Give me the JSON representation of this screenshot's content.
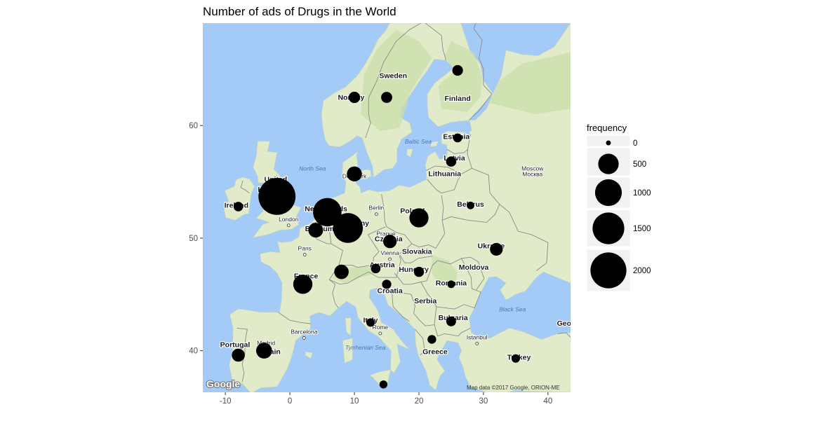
{
  "chart_data": {
    "type": "scatter",
    "title": "Number of ads of Drugs in the World",
    "xlabel": "",
    "ylabel": "",
    "xlim": [
      -13.5,
      43.5
    ],
    "ylim": [
      36.3,
      69.1
    ],
    "x_ticks": [
      -10,
      0,
      10,
      20,
      30,
      40
    ],
    "y_ticks": [
      40,
      50,
      60
    ],
    "x_tick_labels": [
      "-10",
      "0",
      "10",
      "20",
      "30",
      "40"
    ],
    "y_tick_labels": [
      "40",
      "50",
      "60"
    ],
    "grid": false,
    "background": "map",
    "legend": {
      "title": "frequency",
      "placement": "right",
      "entries": [
        {
          "label": "0",
          "value": 0
        },
        {
          "label": "500",
          "value": 500
        },
        {
          "label": "1000",
          "value": 1000
        },
        {
          "label": "1500",
          "value": 1500
        },
        {
          "label": "2000",
          "value": 2000
        }
      ]
    },
    "points": [
      {
        "x": -2.0,
        "y": 53.7,
        "frequency": 2150
      },
      {
        "x": 9.0,
        "y": 50.9,
        "frequency": 1300
      },
      {
        "x": 5.8,
        "y": 52.3,
        "frequency": 1150
      },
      {
        "x": 2.0,
        "y": 45.9,
        "frequency": 430
      },
      {
        "x": 20.0,
        "y": 51.8,
        "frequency": 420
      },
      {
        "x": -4.0,
        "y": 40.0,
        "frequency": 250
      },
      {
        "x": 10.0,
        "y": 55.7,
        "frequency": 210
      },
      {
        "x": 4.0,
        "y": 50.7,
        "frequency": 200
      },
      {
        "x": 8.0,
        "y": 47.0,
        "frequency": 190
      },
      {
        "x": 15.5,
        "y": 49.7,
        "frequency": 150
      },
      {
        "x": -8.0,
        "y": 39.6,
        "frequency": 140
      },
      {
        "x": 32.0,
        "y": 49.0,
        "frequency": 130
      },
      {
        "x": 10.0,
        "y": 62.5,
        "frequency": 85
      },
      {
        "x": 15.0,
        "y": 62.5,
        "frequency": 80
      },
      {
        "x": 26.0,
        "y": 64.9,
        "frequency": 70
      },
      {
        "x": 25.0,
        "y": 56.8,
        "frequency": 60
      },
      {
        "x": 20.0,
        "y": 47.0,
        "frequency": 55
      },
      {
        "x": 25.0,
        "y": 42.6,
        "frequency": 50
      },
      {
        "x": -8.0,
        "y": 52.8,
        "frequency": 45
      },
      {
        "x": 13.3,
        "y": 47.3,
        "frequency": 45
      },
      {
        "x": 15.0,
        "y": 45.9,
        "frequency": 40
      },
      {
        "x": 26.0,
        "y": 58.9,
        "frequency": 35
      },
      {
        "x": 22.0,
        "y": 41.0,
        "frequency": 30
      },
      {
        "x": 12.5,
        "y": 42.5,
        "frequency": 25
      },
      {
        "x": 35.0,
        "y": 39.3,
        "frequency": 25
      },
      {
        "x": 14.5,
        "y": 37.0,
        "frequency": 20
      },
      {
        "x": 28.0,
        "y": 52.9,
        "frequency": 15
      },
      {
        "x": 25.0,
        "y": 45.9,
        "frequency": 15
      }
    ]
  },
  "map": {
    "countries": [
      {
        "name": "Sweden",
        "lon": 16.0,
        "lat": 64.2
      },
      {
        "name": "Norway",
        "lon": 9.5,
        "lat": 62.3
      },
      {
        "name": "Finland",
        "lon": 26.0,
        "lat": 62.2
      },
      {
        "name": "Estonia",
        "lon": 25.8,
        "lat": 58.8
      },
      {
        "name": "Latvia",
        "lon": 25.5,
        "lat": 56.9
      },
      {
        "name": "Lithuania",
        "lon": 24.0,
        "lat": 55.5
      },
      {
        "name": "United",
        "lon": -2.2,
        "lat": 55.0
      },
      {
        "name": "Kingdom",
        "lon": -2.5,
        "lat": 54.1
      },
      {
        "name": "Ireland",
        "lon": -8.3,
        "lat": 52.7
      },
      {
        "name": "Poland",
        "lon": 19.0,
        "lat": 52.2
      },
      {
        "name": "Belarus",
        "lon": 28.0,
        "lat": 52.8
      },
      {
        "name": "Netherlands",
        "lon": 5.6,
        "lat": 52.4
      },
      {
        "name": "Germany",
        "lon": 9.8,
        "lat": 51.1
      },
      {
        "name": "Belgium",
        "lon": 4.6,
        "lat": 50.6
      },
      {
        "name": "Czechia",
        "lon": 15.3,
        "lat": 49.7
      },
      {
        "name": "Slovakia",
        "lon": 19.7,
        "lat": 48.6
      },
      {
        "name": "Ukraine",
        "lon": 31.2,
        "lat": 49.1
      },
      {
        "name": "Moldova",
        "lon": 28.5,
        "lat": 47.2
      },
      {
        "name": "France",
        "lon": 2.5,
        "lat": 46.4
      },
      {
        "name": "Austria",
        "lon": 14.3,
        "lat": 47.4
      },
      {
        "name": "Hungary",
        "lon": 19.2,
        "lat": 47.0
      },
      {
        "name": "Romania",
        "lon": 25.0,
        "lat": 45.8
      },
      {
        "name": "Croatia",
        "lon": 15.5,
        "lat": 45.1
      },
      {
        "name": "Serbia",
        "lon": 21.0,
        "lat": 44.2
      },
      {
        "name": "Italy",
        "lon": 12.5,
        "lat": 42.5
      },
      {
        "name": "Bulgaria",
        "lon": 25.3,
        "lat": 42.7
      },
      {
        "name": "Portugal",
        "lon": -8.5,
        "lat": 40.3
      },
      {
        "name": "Spain",
        "lon": -3.0,
        "lat": 39.7
      },
      {
        "name": "Greece",
        "lon": 22.5,
        "lat": 39.7
      },
      {
        "name": "Turkey",
        "lon": 35.5,
        "lat": 39.2
      },
      {
        "name": "Geo",
        "lon": 42.5,
        "lat": 42.2
      }
    ],
    "cities": [
      {
        "name": "London",
        "lon": -0.2,
        "lat": 51.5
      },
      {
        "name": "Berlin",
        "lon": 13.4,
        "lat": 52.5
      },
      {
        "name": "Paris",
        "lon": 2.3,
        "lat": 48.9
      },
      {
        "name": "Prague",
        "lon": 14.9,
        "lat": 50.2
      },
      {
        "name": "Vienna",
        "lon": 15.5,
        "lat": 48.5
      },
      {
        "name": "Madrid",
        "lon": -3.7,
        "lat": 40.5
      },
      {
        "name": "Barcelona",
        "lon": 2.2,
        "lat": 41.5
      },
      {
        "name": "Rome",
        "lon": 14.0,
        "lat": 41.9
      },
      {
        "name": "Istanbul",
        "lon": 29.0,
        "lat": 41.0
      },
      {
        "name": "Moscow",
        "lon": 37.6,
        "lat": 56.0
      },
      {
        "name": "Москва",
        "lon": 37.6,
        "lat": 55.5
      },
      {
        "name": "Denmark",
        "lon": 10.0,
        "lat": 55.3
      }
    ],
    "seas": [
      {
        "name": "North Sea",
        "lon": 3.5,
        "lat": 56.0
      },
      {
        "name": "Baltic Sea",
        "lon": 19.9,
        "lat": 58.4
      },
      {
        "name": "Black Sea",
        "lon": 34.5,
        "lat": 43.5
      },
      {
        "name": "Tyrrhenian Sea",
        "lon": 11.7,
        "lat": 40.1
      }
    ],
    "attribution": "Map data ©2017 Google, ORION-ME",
    "provider_logo": "Google"
  },
  "colors": {
    "water": "#a4cbf8",
    "land": "#e1ebc9",
    "forest": "#c9deaa",
    "border": "#8a8a8a",
    "points": "#000000",
    "legend_background": "#f2f2f2"
  }
}
